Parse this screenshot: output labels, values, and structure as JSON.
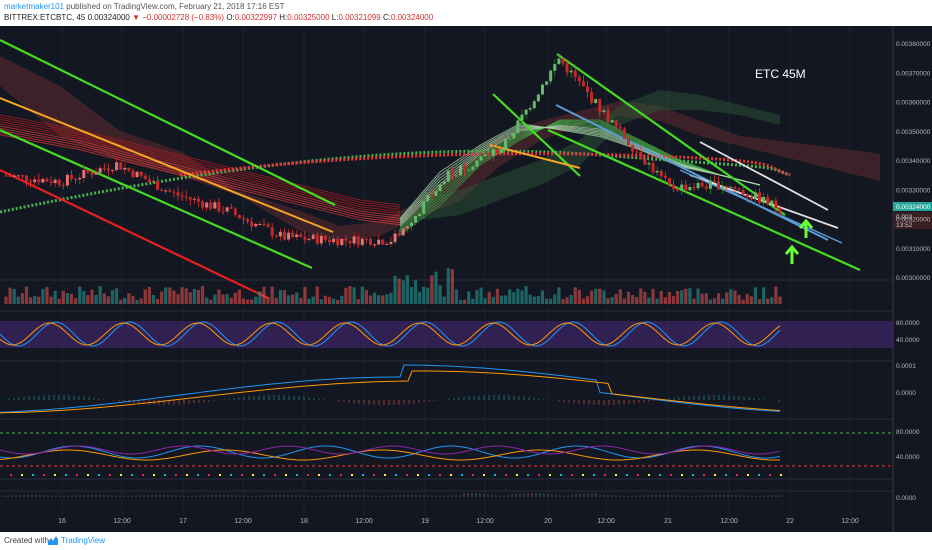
{
  "header": {
    "author": "marketmaker101",
    "published": "published on TradingView.com, February 21, 2018 17:16 EST",
    "symbol": "BITTREX:ETCBTC, 45",
    "price": "0.00324000",
    "change": "▼ −0.00002728 (−0.83%)",
    "open_label": "O:",
    "open": "0.00322997",
    "high_label": "H:",
    "high": "0.00325000",
    "low_label": "L:",
    "low": "0.00321099",
    "close_label": "C:",
    "close": "0.00324000"
  },
  "annotation": "ETC 45M",
  "price_axis": {
    "ticks": [
      "0.00380000",
      "0.00370000",
      "0.00360000",
      "0.00350000",
      "0.00340000",
      "0.00330000",
      "0.00320000",
      "0.00310000",
      "0.00300000"
    ],
    "last_price": "0.00324000",
    "next_label": "0.003",
    "countdown": "13:52"
  },
  "time_axis": [
    "16",
    "12:00",
    "17",
    "12:00",
    "18",
    "12:00",
    "19",
    "12:00",
    "20",
    "12:00",
    "21",
    "12:00",
    "22",
    "12:00"
  ],
  "stoch_axis": [
    "80.0000",
    "40.0000"
  ],
  "macd_axis": [
    "0.0001",
    "0.0000"
  ],
  "rsi_axis": [
    "80.0000",
    "40.0000"
  ],
  "bottom_axis": [
    "0.0000"
  ],
  "footer": {
    "created_with": "Created with",
    "brand": "TradingView"
  },
  "colors": {
    "background": "#131722",
    "up": "#26a69a",
    "down": "#ef5350",
    "channel": "#44dd22",
    "trend_red": "#e52020",
    "trend_orange": "#f5a623",
    "trend_blue": "#5b9bd5",
    "trend_white": "#e0e0e0",
    "arrow": "#66ff33"
  },
  "chart_data": {
    "type": "candlestick",
    "title": "ETC 45M",
    "symbol": "BITTREX:ETCBTC",
    "interval": "45",
    "ylim": [
      0.00296,
      0.00384
    ],
    "x_labels": [
      "16",
      "12:00",
      "17",
      "12:00",
      "18",
      "12:00",
      "19",
      "12:00",
      "20",
      "12:00",
      "21",
      "12:00",
      "22",
      "12:00"
    ],
    "approx_close_path": [
      {
        "time": "Feb 15 end",
        "price": 0.00335
      },
      {
        "time": "Feb 16",
        "price": 0.00333
      },
      {
        "time": "Feb 16 12:00",
        "price": 0.00339
      },
      {
        "time": "Feb 17",
        "price": 0.00329
      },
      {
        "time": "Feb 17 12:00",
        "price": 0.00323
      },
      {
        "time": "Feb 18",
        "price": 0.00314
      },
      {
        "time": "Feb 18 12:00",
        "price": 0.00313
      },
      {
        "time": "Feb 19",
        "price": 0.00313
      },
      {
        "time": "Feb 19 06:00",
        "price": 0.00335
      },
      {
        "time": "Feb 19 12:00",
        "price": 0.00345
      },
      {
        "time": "Feb 20",
        "price": 0.00375
      },
      {
        "time": "Feb 20 12:00",
        "price": 0.00352
      },
      {
        "time": "Feb 21",
        "price": 0.00331
      },
      {
        "time": "Feb 21 12:00",
        "price": 0.00332
      },
      {
        "time": "Feb 21 20:00",
        "price": 0.00324
      }
    ],
    "last_close": 0.00324,
    "indicators": [
      "Ichimoku cloud",
      "Moving average ribbon",
      "Volume",
      "Stochastic RSI",
      "MACD",
      "RSI"
    ]
  }
}
